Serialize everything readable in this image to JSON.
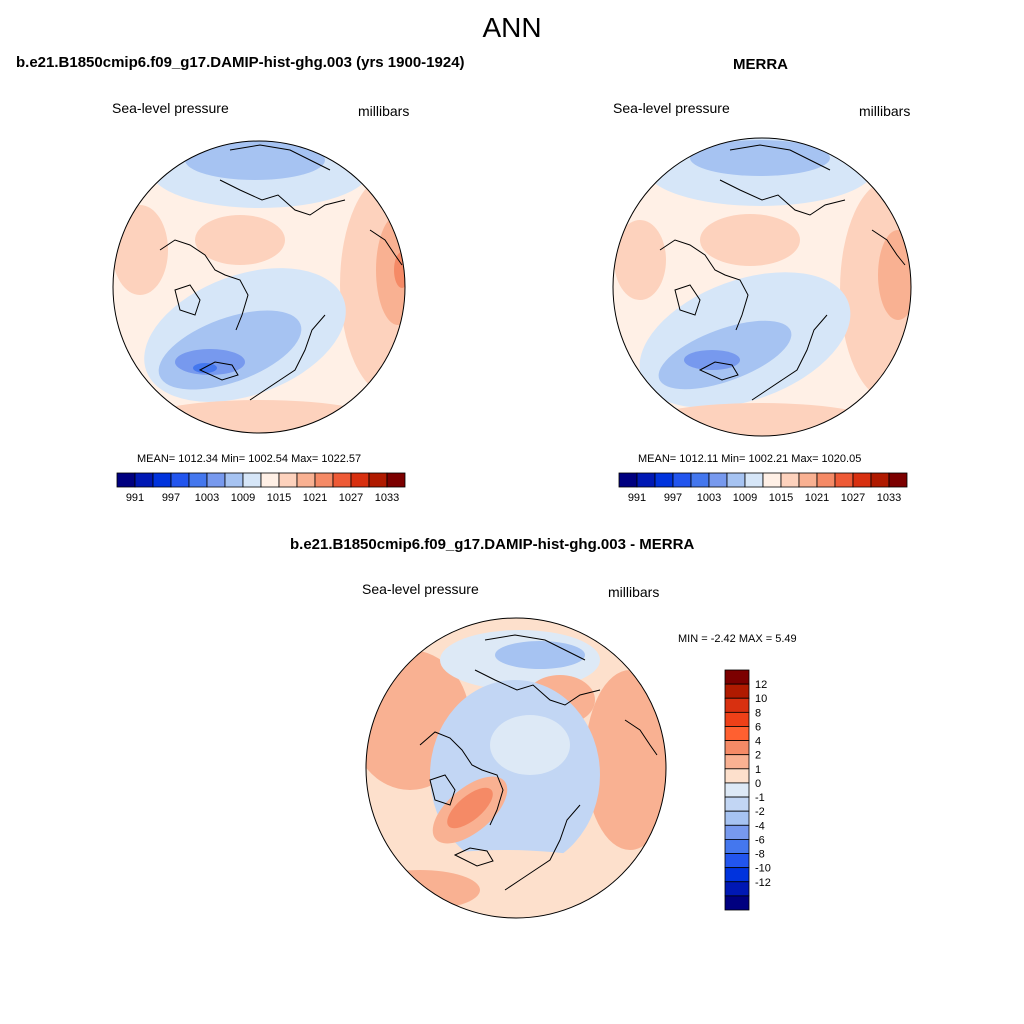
{
  "figure": {
    "title": "ANN"
  },
  "chart_data": [
    {
      "type": "heatmap",
      "projection": "north-polar-stereographic",
      "title": "b.e21.B1850cmip6.f09_g17.DAMIP-hist-ghg.003 (yrs 1900-1924)",
      "left_label": "Sea-level pressure",
      "right_label": "millibars",
      "stats_text": "MEAN= 1012.34  Min= 1002.54  Max= 1022.57",
      "colorbar": {
        "orientation": "horizontal",
        "colors": [
          "#000080",
          "#0018b4",
          "#0033dd",
          "#2255ee",
          "#4477ee",
          "#7799ee",
          "#a6c3f2",
          "#d6e6f8",
          "#fff0e6",
          "#fdd2bd",
          "#f9b192",
          "#f58a66",
          "#ee5a36",
          "#d83010",
          "#b01a00",
          "#7c0000"
        ],
        "tick_labels": [
          "991",
          "997",
          "1003",
          "1009",
          "1015",
          "1021",
          "1027",
          "1033"
        ]
      }
    },
    {
      "type": "heatmap",
      "projection": "north-polar-stereographic",
      "title": "MERRA",
      "left_label": "Sea-level pressure",
      "right_label": "millibars",
      "stats_text": "MEAN= 1012.11  Min= 1002.21  Max= 1020.05",
      "colorbar": {
        "orientation": "horizontal",
        "colors": [
          "#000080",
          "#0018b4",
          "#0033dd",
          "#2255ee",
          "#4477ee",
          "#7799ee",
          "#a6c3f2",
          "#d6e6f8",
          "#fff0e6",
          "#fdd2bd",
          "#f9b192",
          "#f58a66",
          "#ee5a36",
          "#d83010",
          "#b01a00",
          "#7c0000"
        ],
        "tick_labels": [
          "991",
          "997",
          "1003",
          "1009",
          "1015",
          "1021",
          "1027",
          "1033"
        ]
      }
    },
    {
      "type": "heatmap",
      "projection": "north-polar-stereographic",
      "title": "b.e21.B1850cmip6.f09_g17.DAMIP-hist-ghg.003 - MERRA",
      "left_label": "Sea-level pressure",
      "right_label": "millibars",
      "stats_text": "MIN =  -2.42 MAX =   5.49",
      "colorbar": {
        "orientation": "vertical",
        "colors": [
          "#7c0000",
          "#b01a00",
          "#d83010",
          "#ee4018",
          "#ff6030",
          "#f58a66",
          "#f9b192",
          "#fde0cc",
          "#dde9f6",
          "#c2d6f4",
          "#a6c3f2",
          "#7799ee",
          "#4477ee",
          "#2255ee",
          "#0033dd",
          "#0018b4",
          "#000080"
        ],
        "tick_labels": [
          "12",
          "10",
          "8",
          "6",
          "4",
          "2",
          "1",
          "0",
          "-1",
          "-2",
          "-4",
          "-6",
          "-8",
          "-10",
          "-12"
        ]
      }
    }
  ]
}
